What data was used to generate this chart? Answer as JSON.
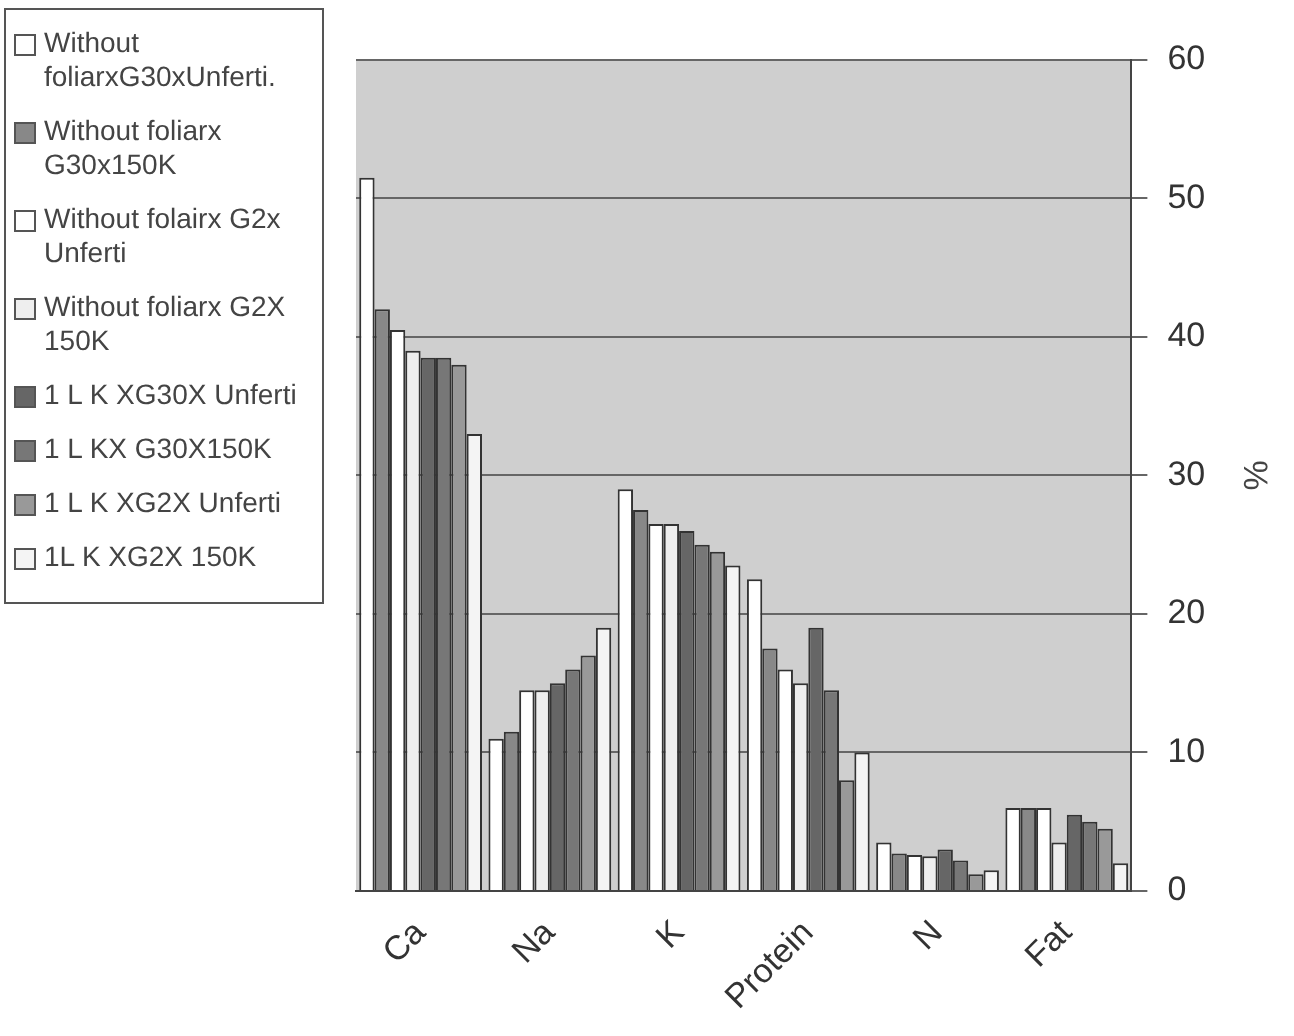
{
  "chart_data": {
    "type": "bar",
    "ylabel": "%",
    "categories": [
      "Ca",
      "Na",
      "K",
      "Protein",
      "N",
      "Fat"
    ],
    "series": [
      {
        "name": "Without foliarxG30xUnferti.",
        "color": "#ffffff",
        "values": [
          51.5,
          11,
          29,
          22.5,
          3.5,
          6
        ]
      },
      {
        "name": "Without foliarx G30x150K",
        "color": "#888888",
        "values": [
          42,
          11.5,
          27.5,
          17.5,
          2.7,
          6
        ]
      },
      {
        "name": "Without folairx G2x Unferti",
        "color": "#ffffff",
        "values": [
          40.5,
          14.5,
          26.5,
          16,
          2.6,
          6
        ]
      },
      {
        "name": "Without foliarx G2X 150K",
        "color": "#eeeeee",
        "values": [
          39,
          14.5,
          26.5,
          15,
          2.5,
          3.5
        ]
      },
      {
        "name": "1 L K XG30X Unferti",
        "color": "#666666",
        "values": [
          38.5,
          15,
          26,
          19,
          3,
          5.5
        ]
      },
      {
        "name": "1 L KX G30X150K",
        "color": "#777777",
        "values": [
          38.5,
          16,
          25,
          14.5,
          2.2,
          5
        ]
      },
      {
        "name": "1 L K XG2X Unferti",
        "color": "#999999",
        "values": [
          38,
          17,
          24.5,
          8,
          1.2,
          4.5
        ]
      },
      {
        "name": "1L K XG2X 150K",
        "color": "#f4f4f4",
        "values": [
          33,
          19,
          23.5,
          10,
          1.5,
          2
        ]
      }
    ],
    "ylim": [
      0,
      60
    ],
    "yticks": [
      0,
      10,
      20,
      30,
      40,
      50,
      60
    ],
    "grid": "y",
    "legend": "left"
  }
}
